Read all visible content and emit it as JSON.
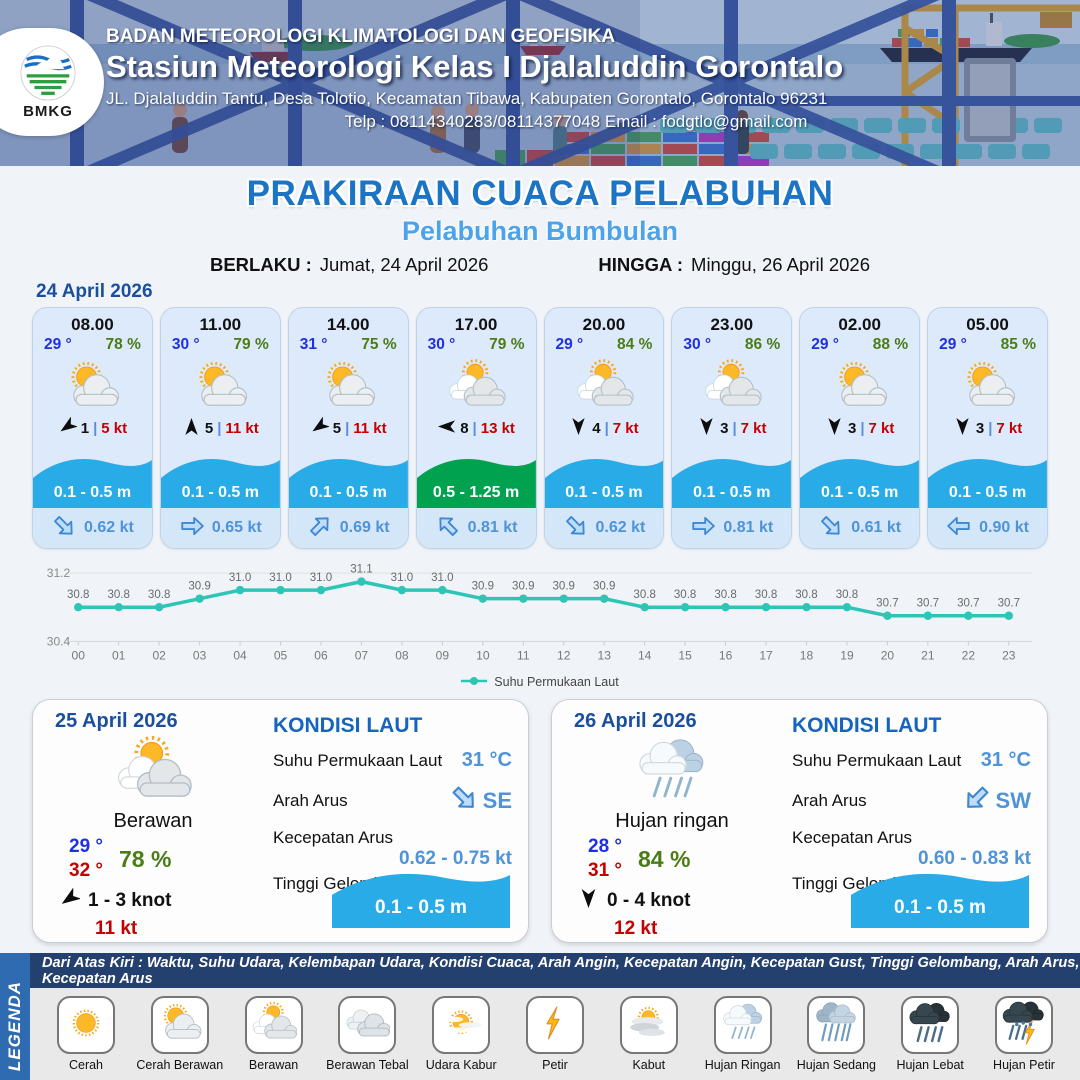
{
  "header": {
    "logo_label": "BMKG",
    "line1": "BADAN METEOROLOGI KLIMATOLOGI DAN GEOFISIKA",
    "line2": "Stasiun Meteorologi Kelas I Djalaluddin Gorontalo",
    "line3": "JL. Djalaluddin Tantu, Desa Tolotio, Kecamatan Tibawa, Kabupaten Gorontalo, Gorontalo 96231",
    "line4": "Telp : 08114340283/08114377048 Email : fodgtlo@gmail.com"
  },
  "title": {
    "main": "PRAKIRAAN CUACA PELABUHAN",
    "sub": "Pelabuhan Bumbulan",
    "berlaku_label": "BERLAKU :",
    "berlaku_value": "Jumat, 24 April 2026",
    "hingga_label": "HINGGA :",
    "hingga_value": "Minggu, 26 April 2026"
  },
  "hourly": {
    "date": "24 April 2026",
    "divider": "|",
    "cards": [
      {
        "time": "08.00",
        "temp": "29 °",
        "humidity": "78 %",
        "icon": "cerah-berawan",
        "wind_deg": 235,
        "wind_num": "1",
        "wind_speed": "5 kt",
        "wave": "0.1 - 0.5 m",
        "wave_color": "#29abe8",
        "current_deg": 135,
        "current_speed": "0.62 kt"
      },
      {
        "time": "11.00",
        "temp": "30 °",
        "humidity": "79 %",
        "icon": "cerah-berawan",
        "wind_deg": 0,
        "wind_num": "5",
        "wind_speed": "11 kt",
        "wave": "0.1 - 0.5 m",
        "wave_color": "#29abe8",
        "current_deg": 90,
        "current_speed": "0.65 kt"
      },
      {
        "time": "14.00",
        "temp": "31 °",
        "humidity": "75 %",
        "icon": "cerah-berawan",
        "wind_deg": 235,
        "wind_num": "5",
        "wind_speed": "11 kt",
        "wave": "0.1 - 0.5 m",
        "wave_color": "#29abe8",
        "current_deg": 45,
        "current_speed": "0.69 kt"
      },
      {
        "time": "17.00",
        "temp": "30 °",
        "humidity": "79 %",
        "icon": "berawan",
        "wind_deg": 270,
        "wind_num": "8",
        "wind_speed": "13 kt",
        "wave": "0.5 - 1.25 m",
        "wave_color": "#00a24f",
        "current_deg": 315,
        "current_speed": "0.81 kt"
      },
      {
        "time": "20.00",
        "temp": "29 °",
        "humidity": "84 %",
        "icon": "berawan",
        "wind_deg": 180,
        "wind_num": "4",
        "wind_speed": "7 kt",
        "wave": "0.1 - 0.5 m",
        "wave_color": "#29abe8",
        "current_deg": 135,
        "current_speed": "0.62 kt"
      },
      {
        "time": "23.00",
        "temp": "30 °",
        "humidity": "86 %",
        "icon": "berawan",
        "wind_deg": 180,
        "wind_num": "3",
        "wind_speed": "7 kt",
        "wave": "0.1 - 0.5 m",
        "wave_color": "#29abe8",
        "current_deg": 90,
        "current_speed": "0.81 kt"
      },
      {
        "time": "02.00",
        "temp": "29 °",
        "humidity": "88 %",
        "icon": "cerah-berawan",
        "wind_deg": 180,
        "wind_num": "3",
        "wind_speed": "7 kt",
        "wave": "0.1 - 0.5 m",
        "wave_color": "#29abe8",
        "current_deg": 135,
        "current_speed": "0.61 kt"
      },
      {
        "time": "05.00",
        "temp": "29 °",
        "humidity": "85 %",
        "icon": "cerah-berawan",
        "wind_deg": 180,
        "wind_num": "3",
        "wind_speed": "7 kt",
        "wave": "0.1 - 0.5 m",
        "wave_color": "#29abe8",
        "current_deg": 270,
        "current_speed": "0.90 kt"
      }
    ]
  },
  "chart_data": {
    "type": "line",
    "x": [
      "00",
      "01",
      "02",
      "03",
      "04",
      "05",
      "06",
      "07",
      "08",
      "09",
      "10",
      "11",
      "12",
      "13",
      "14",
      "15",
      "16",
      "17",
      "18",
      "19",
      "20",
      "21",
      "22",
      "23"
    ],
    "series": [
      {
        "name": "Suhu Permukaan Laut",
        "values": [
          30.8,
          30.8,
          30.8,
          30.9,
          31.0,
          31.0,
          31.0,
          31.1,
          31.0,
          31.0,
          30.9,
          30.9,
          30.9,
          30.9,
          30.8,
          30.8,
          30.8,
          30.8,
          30.8,
          30.8,
          30.7,
          30.7,
          30.7,
          30.7
        ]
      }
    ],
    "ylim": [
      30.4,
      31.2
    ],
    "yticks": [
      "31.2",
      "30.4"
    ],
    "grid": true,
    "legend_position": "bottom",
    "line_color": "#2ec5b6",
    "title": "",
    "xlabel": "",
    "ylabel": ""
  },
  "daily": [
    {
      "date": "25 April 2026",
      "icon": "berawan",
      "condition": "Berawan",
      "temp_min": "29 °",
      "temp_max": "32 °",
      "humidity": "78 %",
      "wind_deg": 235,
      "wind_range": "1 - 3 knot",
      "gust": "11 kt",
      "sea": {
        "title": "KONDISI LAUT",
        "sst_label": "Suhu Permukaan Laut",
        "sst": "31 °C",
        "dir_label": "Arah Arus",
        "dir": "SE",
        "dir_deg": 135,
        "speed_label": "Kecepatan Arus",
        "speed": "0.62 - 0.75 kt",
        "wave_label": "Tinggi Gelombang",
        "wave": "0.1 - 0.5 m",
        "wave_color": "#29abe8"
      }
    },
    {
      "date": "26 April 2026",
      "icon": "hujan-ringan",
      "condition": "Hujan ringan",
      "temp_min": "28 °",
      "temp_max": "31 °",
      "humidity": "84 %",
      "wind_deg": 180,
      "wind_range": "0 - 4 knot",
      "gust": "12 kt",
      "sea": {
        "title": "KONDISI LAUT",
        "sst_label": "Suhu Permukaan Laut",
        "sst": "31 °C",
        "dir_label": "Arah Arus",
        "dir": "SW",
        "dir_deg": 225,
        "speed_label": "Kecepatan Arus",
        "speed": "0.60 - 0.83 kt",
        "wave_label": "Tinggi Gelombang",
        "wave": "0.1 - 0.5 m",
        "wave_color": "#29abe8"
      }
    }
  ],
  "legend": {
    "strip_label": "LEGENDA",
    "note": "Dari Atas Kiri : Waktu, Suhu Udara, Kelembapan Udara, Kondisi Cuaca, Arah Angin, Kecepatan Angin, Kecepatan Gust, Tinggi Gelombang, Arah Arus, Kecepatan Arus",
    "items": [
      {
        "label": "Cerah",
        "icon": "cerah"
      },
      {
        "label": "Cerah Berawan",
        "icon": "cerah-berawan"
      },
      {
        "label": "Berawan",
        "icon": "berawan"
      },
      {
        "label": "Berawan Tebal",
        "icon": "berawan-tebal"
      },
      {
        "label": "Udara Kabur",
        "icon": "udara-kabur"
      },
      {
        "label": "Petir",
        "icon": "petir"
      },
      {
        "label": "Kabut",
        "icon": "kabut"
      },
      {
        "label": "Hujan Ringan",
        "icon": "hujan-ringan"
      },
      {
        "label": "Hujan Sedang",
        "icon": "hujan-sedang"
      },
      {
        "label": "Hujan Lebat",
        "icon": "hujan-lebat"
      },
      {
        "label": "Hujan Petir",
        "icon": "hujan-petir"
      }
    ]
  },
  "colors": {
    "title_blue": "#1b74c4",
    "subtitle_blue": "#4da3ea",
    "date_blue": "#1b4f9e",
    "temp_blue": "#1f2fe3",
    "humidity_green": "#4a7d16",
    "speed_red": "#c40000",
    "wave_blue": "#29abe8",
    "wave_green": "#00a24f",
    "current_blue": "#4f93d8",
    "chart_teal": "#2ec5b6",
    "note_navy": "#24406f",
    "strip_blue": "#2e6bb0"
  }
}
